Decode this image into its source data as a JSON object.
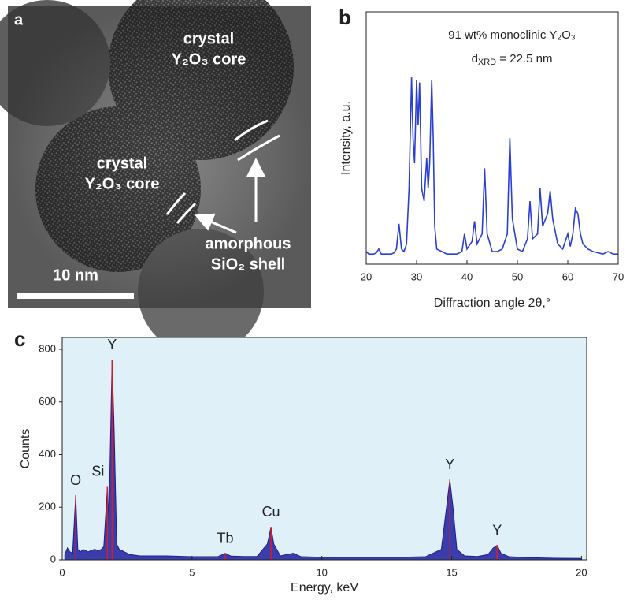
{
  "panel_labels": [
    "a",
    "b",
    "c"
  ],
  "image": {
    "labels": [
      [
        "crystal",
        "Y₂O₃ core"
      ],
      [
        "crystal",
        "Y₂O₃ core"
      ],
      [
        "amorphous",
        "SiO₂ shell"
      ]
    ],
    "scale_bar": "10 nm"
  },
  "chart_data": [
    {
      "type": "line",
      "color": "#2b3fd2",
      "xlabel": "Diffraction angle 2θ,°",
      "ylabel": "Intensity, a.u.",
      "annotations": [
        "91 wt% monoclinic Y₂O₃",
        [
          "d",
          "XRD",
          " = 22.5 nm"
        ]
      ],
      "xlim": [
        20,
        70
      ],
      "xticks": [
        20,
        30,
        40,
        50,
        60,
        70
      ],
      "ylim": [
        0,
        100
      ],
      "x": [
        20,
        20.5,
        21,
        21.5,
        22,
        22.5,
        23,
        24,
        25,
        25.5,
        26,
        26.5,
        27,
        27.5,
        28,
        28.5,
        29,
        29.3,
        29.6,
        30,
        30.3,
        30.6,
        31,
        31.5,
        32,
        32.3,
        32.6,
        33,
        33.3,
        33.6,
        34,
        35,
        36,
        37,
        38,
        39,
        39.5,
        40,
        41,
        41.5,
        42,
        43,
        43.5,
        44,
        45,
        46,
        47,
        48,
        48.5,
        49,
        50,
        51,
        52,
        52.5,
        53,
        54,
        54.5,
        55,
        56,
        56.5,
        57,
        58,
        59,
        60,
        60.5,
        61,
        61.5,
        62,
        62.5,
        63,
        64,
        65,
        66,
        67,
        68,
        69,
        70
      ],
      "values": [
        5,
        4,
        4,
        4,
        4.5,
        6,
        4,
        4,
        4,
        4.5,
        6,
        16,
        6,
        5,
        8,
        30,
        74,
        50,
        40,
        73,
        55,
        72,
        30,
        25,
        42,
        30,
        40,
        73,
        50,
        15,
        6,
        5,
        4,
        4,
        4,
        5,
        12,
        6,
        9,
        17,
        8,
        12,
        38,
        12,
        5,
        5,
        6,
        12,
        50,
        18,
        6,
        5,
        10,
        25,
        10,
        12,
        30,
        15,
        20,
        29,
        18,
        8,
        6,
        12,
        7,
        12,
        22,
        20,
        12,
        8,
        6,
        5,
        4.5,
        4,
        5,
        4,
        4
      ]
    },
    {
      "type": "area",
      "color": "#1d1d9c",
      "background": "#dff0f8",
      "peak_color": "#d42020",
      "xlabel": "Energy, keV",
      "ylabel": "Counts",
      "xlim": [
        0,
        20.2
      ],
      "xticks": [
        0,
        5,
        10,
        15,
        20
      ],
      "ylim": [
        0,
        845
      ],
      "yticks": [
        0,
        200,
        400,
        600,
        800
      ],
      "x": [
        0.1,
        0.2,
        0.3,
        0.4,
        0.52,
        0.6,
        0.7,
        0.8,
        0.9,
        1.0,
        1.1,
        1.25,
        1.4,
        1.5,
        1.6,
        1.74,
        1.8,
        1.92,
        2.0,
        2.1,
        2.2,
        2.4,
        2.6,
        3,
        3.5,
        4,
        5,
        6,
        6.28,
        6.5,
        7,
        7.5,
        7.9,
        8.04,
        8.15,
        8.4,
        8.9,
        9.2,
        10,
        11,
        12,
        13,
        14,
        14.6,
        14.8,
        14.93,
        15.05,
        15.2,
        15.5,
        16,
        16.4,
        16.6,
        16.75,
        16.9,
        17.2,
        18,
        19,
        20
      ],
      "values": [
        20,
        45,
        30,
        25,
        245,
        40,
        30,
        40,
        35,
        30,
        35,
        40,
        35,
        40,
        50,
        280,
        150,
        760,
        500,
        60,
        40,
        30,
        20,
        15,
        15,
        15,
        12,
        12,
        25,
        14,
        13,
        13,
        60,
        125,
        60,
        15,
        25,
        12,
        10,
        10,
        10,
        10,
        12,
        40,
        200,
        305,
        200,
        40,
        15,
        13,
        20,
        45,
        55,
        25,
        12,
        8,
        6,
        5
      ],
      "peaks": [
        {
          "label": "O",
          "x": 0.52,
          "y": 245
        },
        {
          "label": "Si",
          "x": 1.74,
          "y": 280
        },
        {
          "label": "Y",
          "x": 1.92,
          "y": 760
        },
        {
          "label": "Tb",
          "x": 6.28,
          "y": 25
        },
        {
          "label": "Cu",
          "x": 8.04,
          "y": 125
        },
        {
          "label": "Y",
          "x": 14.93,
          "y": 305
        },
        {
          "label": "Y",
          "x": 16.75,
          "y": 55
        }
      ]
    }
  ]
}
